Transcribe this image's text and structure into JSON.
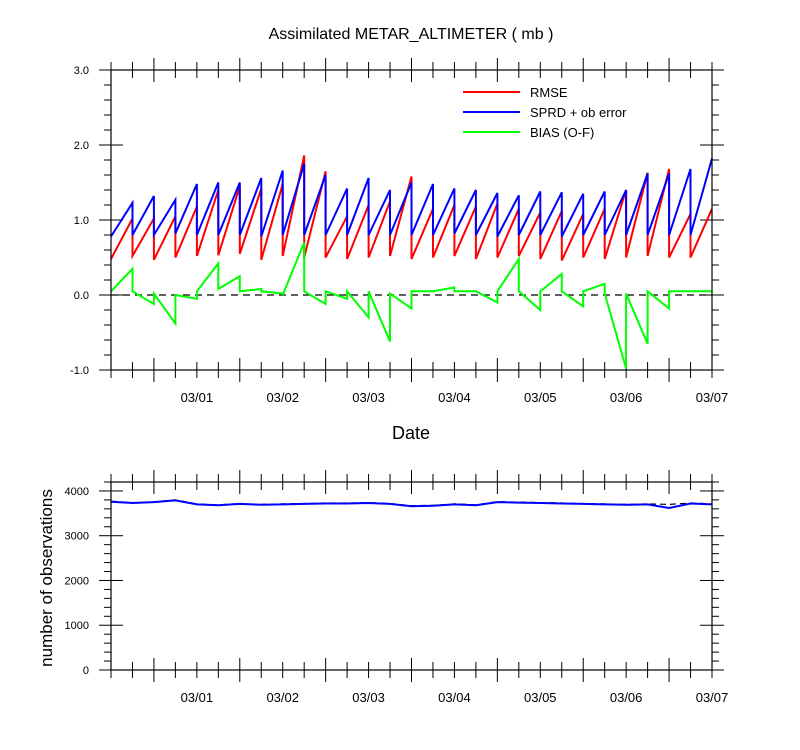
{
  "chart_data": [
    {
      "type": "line",
      "title": "Assimilated METAR_ALTIMETER ( mb )",
      "xlabel": "Date",
      "ylabel": "",
      "ylim": [
        -1.0,
        3.0
      ],
      "yticks": [
        "-1.0",
        "0.0",
        "1.0",
        "2.0",
        "3.0"
      ],
      "xlim": [
        "2018-02-28T12:00",
        "2018-03-07T12:00"
      ],
      "xticks": [
        "03/01",
        "03/02",
        "03/03",
        "03/04",
        "03/05",
        "03/06",
        "03/07"
      ],
      "grid": false,
      "legend": "top-right",
      "zero_line": true,
      "series": [
        {
          "name": "RMSE",
          "color": "#ff0000",
          "x": [
            "2018-02-28T12:00",
            "2018-02-28T18:00",
            "2018-02-28T18:00",
            "2018-03-01T00:00",
            "2018-03-01T00:00",
            "2018-03-01T06:00",
            "2018-03-01T06:00",
            "2018-03-01T12:00",
            "2018-03-01T12:00",
            "2018-03-01T18:00",
            "2018-03-01T18:00",
            "2018-03-02T00:00",
            "2018-03-02T00:00",
            "2018-03-02T06:00",
            "2018-03-02T06:00",
            "2018-03-02T12:00",
            "2018-03-02T12:00",
            "2018-03-02T18:00",
            "2018-03-02T18:00",
            "2018-03-03T00:00",
            "2018-03-03T00:00",
            "2018-03-03T06:00",
            "2018-03-03T06:00",
            "2018-03-03T12:00",
            "2018-03-03T12:00",
            "2018-03-03T18:00",
            "2018-03-03T18:00",
            "2018-03-04T00:00",
            "2018-03-04T00:00",
            "2018-03-04T06:00",
            "2018-03-04T06:00",
            "2018-03-04T12:00",
            "2018-03-04T12:00",
            "2018-03-04T18:00",
            "2018-03-04T18:00",
            "2018-03-05T00:00",
            "2018-03-05T00:00",
            "2018-03-05T06:00",
            "2018-03-05T06:00",
            "2018-03-05T12:00",
            "2018-03-05T12:00",
            "2018-03-05T18:00",
            "2018-03-05T18:00",
            "2018-03-06T00:00",
            "2018-03-06T00:00",
            "2018-03-06T06:00",
            "2018-03-06T06:00",
            "2018-03-06T12:00",
            "2018-03-06T12:00",
            "2018-03-06T18:00",
            "2018-03-06T18:00",
            "2018-03-07T00:00",
            "2018-03-07T00:00",
            "2018-03-07T06:00",
            "2018-03-07T06:00",
            "2018-03-07T12:00"
          ],
          "values": [
            0.48,
            1.02,
            0.52,
            1.02,
            0.47,
            1.05,
            0.5,
            1.18,
            0.52,
            1.4,
            0.53,
            1.45,
            0.55,
            1.42,
            0.47,
            1.48,
            0.52,
            1.86,
            0.5,
            1.65,
            0.5,
            1.05,
            0.48,
            1.2,
            0.5,
            1.25,
            0.52,
            1.58,
            0.48,
            1.15,
            0.5,
            1.2,
            0.52,
            1.18,
            0.48,
            1.22,
            0.5,
            1.15,
            0.52,
            1.1,
            0.48,
            1.12,
            0.46,
            1.08,
            0.5,
            1.15,
            0.48,
            1.4,
            0.5,
            1.63,
            0.52,
            1.68,
            0.5,
            1.08,
            0.5,
            1.15
          ]
        },
        {
          "name": "SPRD + ob error",
          "color": "#0000ff",
          "x": [
            "2018-02-28T12:00",
            "2018-02-28T18:00",
            "2018-02-28T18:00",
            "2018-03-01T00:00",
            "2018-03-01T00:00",
            "2018-03-01T06:00",
            "2018-03-01T06:00",
            "2018-03-01T12:00",
            "2018-03-01T12:00",
            "2018-03-01T18:00",
            "2018-03-01T18:00",
            "2018-03-02T00:00",
            "2018-03-02T00:00",
            "2018-03-02T06:00",
            "2018-03-02T06:00",
            "2018-03-02T12:00",
            "2018-03-02T12:00",
            "2018-03-02T18:00",
            "2018-03-02T18:00",
            "2018-03-03T00:00",
            "2018-03-03T00:00",
            "2018-03-03T06:00",
            "2018-03-03T06:00",
            "2018-03-03T12:00",
            "2018-03-03T12:00",
            "2018-03-03T18:00",
            "2018-03-03T18:00",
            "2018-03-04T00:00",
            "2018-03-04T00:00",
            "2018-03-04T06:00",
            "2018-03-04T06:00",
            "2018-03-04T12:00",
            "2018-03-04T12:00",
            "2018-03-04T18:00",
            "2018-03-04T18:00",
            "2018-03-05T00:00",
            "2018-03-05T00:00",
            "2018-03-05T06:00",
            "2018-03-05T06:00",
            "2018-03-05T12:00",
            "2018-03-05T12:00",
            "2018-03-05T18:00",
            "2018-03-05T18:00",
            "2018-03-06T00:00",
            "2018-03-06T00:00",
            "2018-03-06T06:00",
            "2018-03-06T06:00",
            "2018-03-06T12:00",
            "2018-03-06T12:00",
            "2018-03-06T18:00",
            "2018-03-06T18:00",
            "2018-03-07T00:00",
            "2018-03-07T00:00",
            "2018-03-07T06:00",
            "2018-03-07T06:00",
            "2018-03-07T12:00"
          ],
          "values": [
            0.78,
            1.23,
            0.8,
            1.32,
            0.8,
            1.27,
            0.82,
            1.48,
            0.8,
            1.5,
            0.8,
            1.5,
            0.8,
            1.56,
            0.78,
            1.66,
            0.8,
            1.75,
            0.8,
            1.6,
            0.8,
            1.42,
            0.8,
            1.56,
            0.8,
            1.4,
            0.8,
            1.5,
            0.8,
            1.48,
            0.8,
            1.42,
            0.82,
            1.4,
            0.8,
            1.36,
            0.78,
            1.33,
            0.8,
            1.38,
            0.8,
            1.37,
            0.78,
            1.35,
            0.8,
            1.38,
            0.8,
            1.4,
            0.8,
            1.62,
            0.8,
            1.62,
            0.8,
            1.68,
            0.8,
            1.82
          ]
        },
        {
          "name": "BIAS (O-F)",
          "color": "#00ff00",
          "x": [
            "2018-02-28T12:00",
            "2018-02-28T18:00",
            "2018-02-28T18:00",
            "2018-03-01T00:00",
            "2018-03-01T00:00",
            "2018-03-01T06:00",
            "2018-03-01T06:00",
            "2018-03-01T12:00",
            "2018-03-01T12:00",
            "2018-03-01T18:00",
            "2018-03-01T18:00",
            "2018-03-02T00:00",
            "2018-03-02T00:00",
            "2018-03-02T06:00",
            "2018-03-02T06:00",
            "2018-03-02T12:00",
            "2018-03-02T12:00",
            "2018-03-02T18:00",
            "2018-03-02T18:00",
            "2018-03-03T00:00",
            "2018-03-03T00:00",
            "2018-03-03T06:00",
            "2018-03-03T06:00",
            "2018-03-03T12:00",
            "2018-03-03T12:00",
            "2018-03-03T18:00",
            "2018-03-03T18:00",
            "2018-03-04T00:00",
            "2018-03-04T00:00",
            "2018-03-04T06:00",
            "2018-03-04T06:00",
            "2018-03-04T12:00",
            "2018-03-04T12:00",
            "2018-03-04T18:00",
            "2018-03-04T18:00",
            "2018-03-05T00:00",
            "2018-03-05T00:00",
            "2018-03-05T06:00",
            "2018-03-05T06:00",
            "2018-03-05T12:00",
            "2018-03-05T12:00",
            "2018-03-05T18:00",
            "2018-03-05T18:00",
            "2018-03-06T00:00",
            "2018-03-06T00:00",
            "2018-03-06T06:00",
            "2018-03-06T06:00",
            "2018-03-06T12:00",
            "2018-03-06T12:00",
            "2018-03-06T18:00",
            "2018-03-06T18:00",
            "2018-03-07T00:00",
            "2018-03-07T00:00",
            "2018-03-07T06:00",
            "2018-03-07T06:00",
            "2018-03-07T12:00"
          ],
          "values": [
            0.05,
            0.35,
            0.05,
            -0.12,
            0.02,
            -0.38,
            0.0,
            -0.05,
            0.05,
            0.42,
            0.08,
            0.25,
            0.05,
            0.08,
            0.05,
            0.02,
            0.0,
            0.7,
            0.05,
            -0.12,
            0.05,
            -0.05,
            0.05,
            -0.3,
            0.05,
            -0.62,
            0.02,
            -0.18,
            0.05,
            0.05,
            0.05,
            0.1,
            0.05,
            0.05,
            0.05,
            -0.1,
            0.05,
            0.48,
            0.05,
            -0.2,
            0.05,
            0.28,
            0.05,
            -0.15,
            0.05,
            0.15,
            0.02,
            -0.98,
            0.02,
            -0.65,
            0.05,
            -0.18,
            0.05,
            0.05,
            0.05,
            0.05
          ]
        }
      ]
    },
    {
      "type": "line",
      "title": "",
      "xlabel": "",
      "ylabel": "number of observations",
      "ylim": [
        0,
        4200
      ],
      "yticks": [
        "0",
        "1000",
        "2000",
        "3000",
        "4000"
      ],
      "xlim": [
        "2018-02-28T12:00",
        "2018-03-07T12:00"
      ],
      "xticks": [
        "03/01",
        "03/02",
        "03/03",
        "03/04",
        "03/05",
        "03/06",
        "03/07"
      ],
      "grid": false,
      "legend": "none",
      "series": [
        {
          "color": "#000000",
          "dashed": true,
          "x": [
            "2018-02-28T12:00",
            "2018-02-28T18:00",
            "2018-03-01T00:00",
            "2018-03-01T06:00",
            "2018-03-01T12:00",
            "2018-03-01T18:00",
            "2018-03-02T00:00",
            "2018-03-02T06:00",
            "2018-03-02T12:00",
            "2018-03-02T18:00",
            "2018-03-03T00:00",
            "2018-03-03T06:00",
            "2018-03-03T12:00",
            "2018-03-03T18:00",
            "2018-03-04T00:00",
            "2018-03-04T06:00",
            "2018-03-04T12:00",
            "2018-03-04T18:00",
            "2018-03-05T00:00",
            "2018-03-05T06:00",
            "2018-03-05T12:00",
            "2018-03-05T18:00",
            "2018-03-06T00:00",
            "2018-03-06T06:00",
            "2018-03-06T12:00",
            "2018-03-06T18:00",
            "2018-03-07T00:00",
            "2018-03-07T06:00",
            "2018-03-07T12:00"
          ],
          "values": [
            3770,
            3740,
            3760,
            3800,
            3710,
            3690,
            3720,
            3700,
            3710,
            3720,
            3730,
            3730,
            3740,
            3720,
            3670,
            3680,
            3710,
            3690,
            3760,
            3750,
            3740,
            3730,
            3720,
            3710,
            3700,
            3710,
            3700,
            3730,
            3710
          ]
        },
        {
          "color": "#0000ff",
          "dashed": false,
          "x": [
            "2018-02-28T12:00",
            "2018-02-28T18:00",
            "2018-03-01T00:00",
            "2018-03-01T06:00",
            "2018-03-01T12:00",
            "2018-03-01T18:00",
            "2018-03-02T00:00",
            "2018-03-02T06:00",
            "2018-03-02T12:00",
            "2018-03-02T18:00",
            "2018-03-03T00:00",
            "2018-03-03T06:00",
            "2018-03-03T12:00",
            "2018-03-03T18:00",
            "2018-03-04T00:00",
            "2018-03-04T06:00",
            "2018-03-04T12:00",
            "2018-03-04T18:00",
            "2018-03-05T00:00",
            "2018-03-05T06:00",
            "2018-03-05T12:00",
            "2018-03-05T18:00",
            "2018-03-06T00:00",
            "2018-03-06T06:00",
            "2018-03-06T12:00",
            "2018-03-06T18:00",
            "2018-03-07T00:00",
            "2018-03-07T06:00",
            "2018-03-07T12:00"
          ],
          "values": [
            3760,
            3730,
            3750,
            3790,
            3700,
            3680,
            3710,
            3690,
            3700,
            3710,
            3720,
            3720,
            3730,
            3710,
            3660,
            3670,
            3700,
            3680,
            3750,
            3740,
            3730,
            3720,
            3710,
            3700,
            3690,
            3700,
            3620,
            3720,
            3700
          ]
        }
      ]
    }
  ]
}
